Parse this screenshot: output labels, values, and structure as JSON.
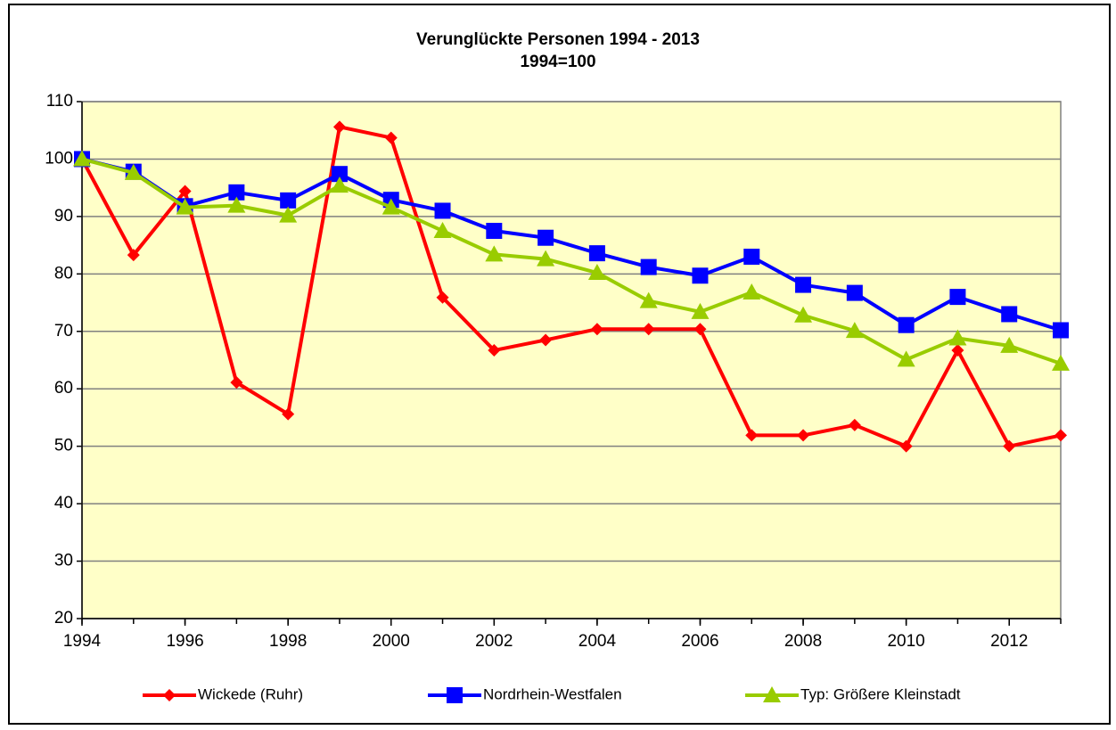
{
  "chart_data": {
    "type": "line",
    "title": "Verunglückte Personen 1994 - 2013",
    "subtitle": "1994=100",
    "x": [
      1994,
      1995,
      1996,
      1997,
      1998,
      1999,
      2000,
      2001,
      2002,
      2003,
      2004,
      2005,
      2006,
      2007,
      2008,
      2009,
      2010,
      2011,
      2012,
      2013
    ],
    "xlim": [
      1994,
      2013
    ],
    "xticks": [
      1994,
      1996,
      1998,
      2000,
      2002,
      2004,
      2006,
      2008,
      2010,
      2012
    ],
    "ylim": [
      20,
      110
    ],
    "yticks": [
      20,
      30,
      40,
      50,
      60,
      70,
      80,
      90,
      100,
      110
    ],
    "grid": true,
    "legend": "bottom",
    "series": [
      {
        "name": "Wickede (Ruhr)",
        "color": "#ff0000",
        "marker": "diamond",
        "values": [
          100,
          83.3,
          94.4,
          61.1,
          55.6,
          105.6,
          103.7,
          75.9,
          66.7,
          68.5,
          70.4,
          70.4,
          70.4,
          51.9,
          51.9,
          53.7,
          50.0,
          66.7,
          50.0,
          51.9
        ]
      },
      {
        "name": "Nordrhein-Westfalen",
        "color": "#0000ff",
        "marker": "square",
        "values": [
          100,
          97.8,
          91.8,
          94.2,
          92.8,
          97.4,
          92.9,
          91.0,
          87.5,
          86.3,
          83.6,
          81.2,
          79.7,
          83.0,
          78.1,
          76.7,
          71.1,
          76.0,
          73.0,
          70.2
        ]
      },
      {
        "name": "Typ: Größere Kleinstadt",
        "color": "#99cc00",
        "marker": "triangle",
        "values": [
          100,
          97.6,
          91.6,
          91.9,
          90.2,
          95.4,
          91.6,
          87.5,
          83.4,
          82.6,
          80.2,
          75.3,
          73.4,
          76.8,
          72.8,
          70.1,
          65.1,
          68.8,
          67.5,
          64.4
        ]
      }
    ]
  }
}
